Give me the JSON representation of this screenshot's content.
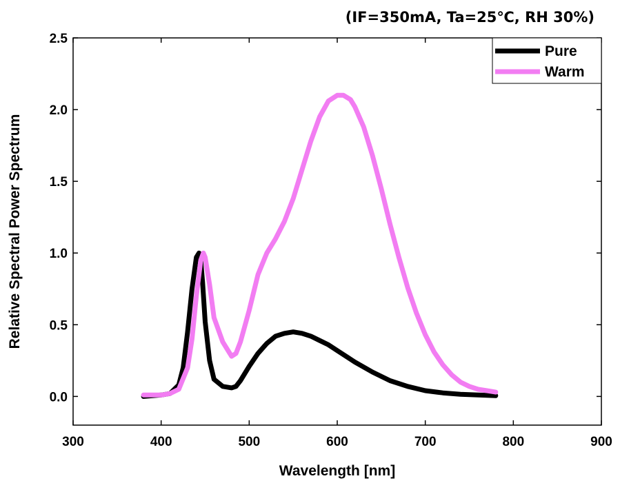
{
  "chart_data": {
    "type": "line",
    "subtitle": "(IF=350mA, Ta=25℃, RH 30%)",
    "xlabel": "Wavelength [nm]",
    "ylabel": "Relative Spectral Power Spectrum",
    "xlim": [
      300,
      900
    ],
    "ylim": [
      -0.2,
      2.5
    ],
    "xticks": [
      300,
      400,
      500,
      600,
      700,
      800,
      900
    ],
    "xtick_labels": [
      "300",
      "400",
      "500",
      "600",
      "700",
      "800",
      "900"
    ],
    "yticks": [
      0.0,
      0.5,
      1.0,
      1.5,
      2.0,
      2.5
    ],
    "ytick_labels": [
      "0.0",
      "0.5",
      "1.0",
      "1.5",
      "2.0",
      "2.5"
    ],
    "grid": false,
    "legend_position": "top-right",
    "series": [
      {
        "name": "Pure",
        "color": "#000000",
        "x": [
          380,
          400,
          410,
          420,
          425,
          430,
          435,
          440,
          443,
          445,
          447,
          450,
          455,
          460,
          470,
          480,
          485,
          490,
          500,
          510,
          520,
          530,
          540,
          550,
          560,
          570,
          580,
          590,
          600,
          620,
          640,
          660,
          680,
          700,
          720,
          740,
          760,
          780
        ],
        "y": [
          0.0,
          0.01,
          0.02,
          0.08,
          0.2,
          0.45,
          0.75,
          0.97,
          1.0,
          0.95,
          0.8,
          0.52,
          0.25,
          0.12,
          0.07,
          0.06,
          0.07,
          0.11,
          0.21,
          0.3,
          0.37,
          0.42,
          0.44,
          0.45,
          0.44,
          0.42,
          0.39,
          0.36,
          0.32,
          0.24,
          0.17,
          0.11,
          0.07,
          0.04,
          0.025,
          0.015,
          0.01,
          0.005
        ]
      },
      {
        "name": "Warm",
        "color": "#f27df2",
        "x": [
          380,
          400,
          410,
          420,
          430,
          435,
          440,
          445,
          448,
          450,
          455,
          460,
          470,
          480,
          485,
          490,
          500,
          510,
          520,
          530,
          540,
          550,
          560,
          570,
          580,
          590,
          600,
          607,
          615,
          620,
          630,
          640,
          650,
          660,
          670,
          680,
          690,
          700,
          710,
          720,
          730,
          740,
          750,
          760,
          770,
          780
        ],
        "y": [
          0.01,
          0.01,
          0.02,
          0.05,
          0.2,
          0.4,
          0.7,
          0.95,
          1.0,
          0.97,
          0.78,
          0.55,
          0.38,
          0.28,
          0.3,
          0.38,
          0.6,
          0.85,
          1.0,
          1.1,
          1.22,
          1.38,
          1.58,
          1.78,
          1.95,
          2.06,
          2.1,
          2.1,
          2.07,
          2.02,
          1.88,
          1.68,
          1.45,
          1.2,
          0.97,
          0.76,
          0.58,
          0.43,
          0.31,
          0.22,
          0.15,
          0.1,
          0.07,
          0.05,
          0.04,
          0.03
        ]
      }
    ]
  }
}
